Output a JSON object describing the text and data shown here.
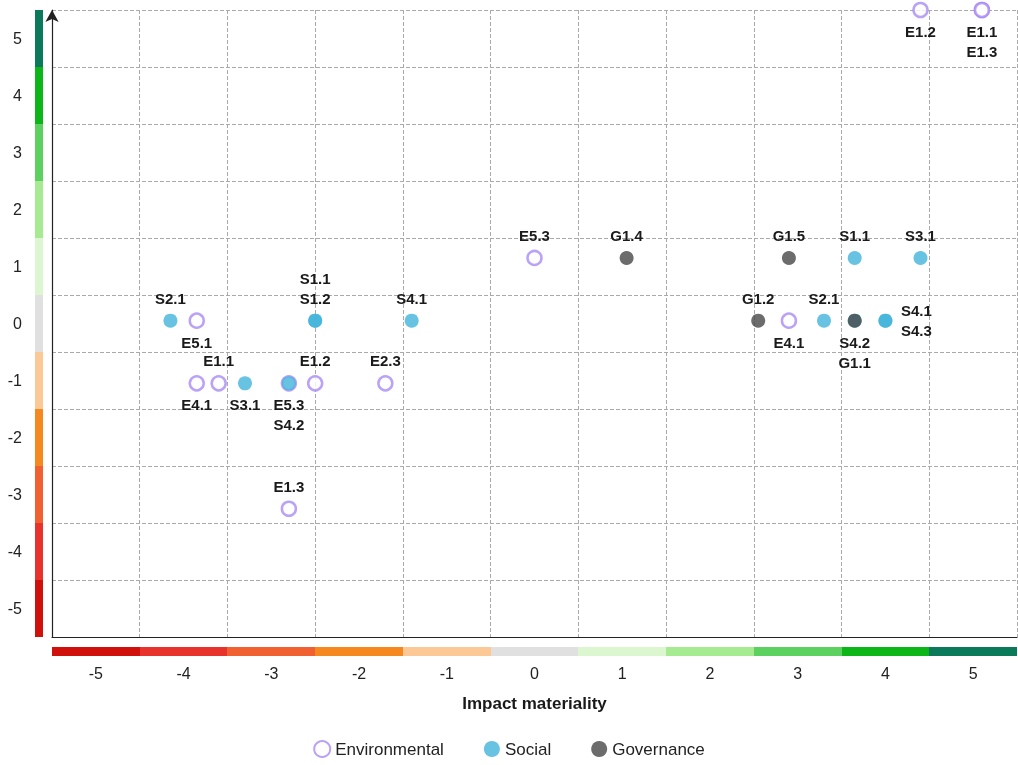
{
  "chart_data": {
    "type": "scatter",
    "xlabel": "Impact materiality",
    "xlim": [
      -5.5,
      5.5
    ],
    "ylim": [
      -5.5,
      5.5
    ],
    "xticks": [
      {
        "value": -5.5,
        "label": null
      },
      -5,
      {
        "value": -4.5,
        "label": null
      },
      -4,
      {
        "value": -3.5,
        "label": null
      },
      -3,
      {
        "value": -2.5,
        "label": null
      },
      -2,
      {
        "value": -1.5,
        "label": null
      },
      -1,
      {
        "value": -0.5,
        "label": null
      },
      0,
      {
        "value": 0.5,
        "label": null
      },
      1,
      {
        "value": 1.5,
        "label": null
      },
      2,
      {
        "value": 2.5,
        "label": null
      },
      3,
      {
        "value": 3.5,
        "label": null
      },
      4,
      {
        "value": 4.5,
        "label": null
      },
      5,
      {
        "value": 5.5,
        "label": null
      }
    ],
    "yticks": [
      {
        "value": -5.5,
        "label": null
      },
      -5,
      {
        "value": -4.5,
        "label": null
      },
      -4,
      {
        "value": -3.5,
        "label": null
      },
      -3,
      {
        "value": -2.5,
        "label": null
      },
      -2,
      {
        "value": -1.5,
        "label": null
      },
      -1,
      {
        "value": -0.5,
        "label": null
      },
      0,
      {
        "value": 0.5,
        "label": null
      },
      1,
      {
        "value": 1.5,
        "label": null
      },
      2,
      {
        "value": 2.5,
        "label": null
      },
      3,
      {
        "value": 3.5,
        "label": null
      },
      4,
      {
        "value": 4.5,
        "label": null
      },
      5,
      {
        "value": 5.5,
        "label": null
      }
    ],
    "grid": true,
    "legend": "bottom",
    "marker": "circle",
    "series": [
      {
        "name": "Environmental",
        "color": "#a98bf5",
        "x": [
          0,
          -3.85,
          -3.85,
          -3.6,
          -2.5,
          -1.7,
          -2.8,
          -2.8,
          2.9,
          4.4,
          5.1,
          5.1
        ],
        "values": [
          1.15,
          0.05,
          -1.05,
          -1.05,
          -1.05,
          -1.05,
          -1.05,
          -3.25,
          0.05,
          5.5,
          5.5,
          5.5
        ],
        "value_labels": [
          "E5.3",
          "E5.1",
          "E4.1",
          "E1.1",
          "E1.2",
          "E2.3",
          "E5.3",
          "E1.3",
          "E4.1",
          "E1.2",
          "E1.1",
          "E1.3"
        ]
      },
      {
        "name": "Social",
        "color": "#41b4d9",
        "x": [
          -4.15,
          -2.5,
          -2.5,
          -1.4,
          -3.3,
          -2.8,
          3.65,
          4.4,
          3.3,
          3.65,
          4.0,
          4.0
        ],
        "values": [
          0.05,
          0.05,
          0.05,
          0.05,
          -1.05,
          -1.05,
          1.15,
          1.15,
          0.05,
          0.05,
          0.05,
          0.05
        ],
        "value_labels": [
          "S2.1",
          "S1.1",
          "S1.2",
          "S4.1",
          "S3.1",
          "S4.2",
          "S1.1",
          "S3.1",
          "S2.1",
          "S4.2",
          "S4.1",
          "S4.3"
        ]
      },
      {
        "name": "Governance",
        "color": "#474747",
        "x": [
          1.05,
          2.9,
          2.55,
          3.65
        ],
        "values": [
          1.15,
          1.15,
          0.05,
          0.05
        ],
        "value_labels": [
          "G1.4",
          "G1.5",
          "G1.2",
          "G1.1"
        ]
      }
    ]
  }
}
